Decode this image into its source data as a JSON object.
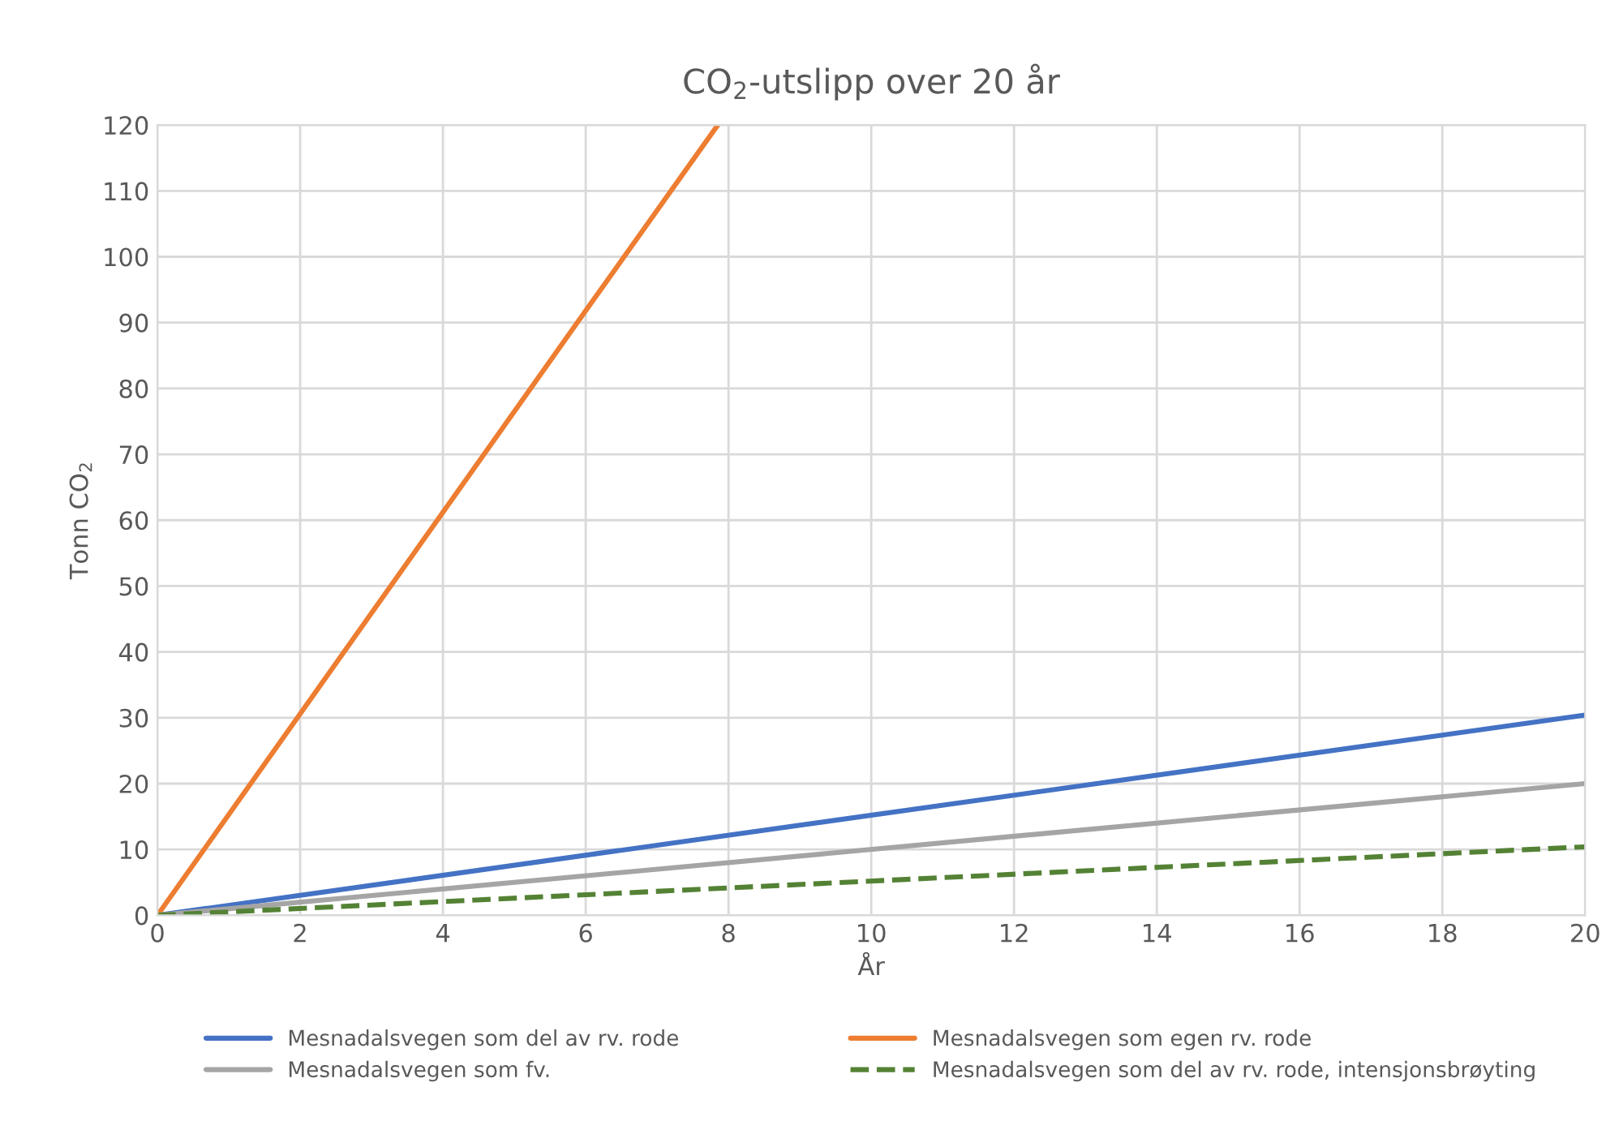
{
  "chart_data": {
    "type": "line",
    "title": "CO$_{2}$-utslipp over 20 år",
    "xlabel": "År",
    "ylabel": "Tonn CO$_{2}$",
    "xlim": [
      0,
      20
    ],
    "xticks": [
      0,
      2,
      4,
      6,
      8,
      10,
      12,
      14,
      16,
      18,
      20
    ],
    "ylim": [
      0,
      120
    ],
    "yticks": [
      0,
      10,
      20,
      30,
      40,
      50,
      60,
      70,
      80,
      90,
      100,
      110,
      120
    ],
    "grid": true,
    "legend": "bottom",
    "marker": "none",
    "series": [
      {
        "name": "Mesnadalsvegen som del av rv. rode",
        "color": "#4472c4",
        "x": [
          0,
          20
        ],
        "values": [
          0,
          30.4
        ],
        "line_style": "solid"
      },
      {
        "name": "Mesnadalsvegen som egen rv. rode",
        "color": "#ed7d31",
        "x": [
          0,
          2,
          4,
          6,
          7.85
        ],
        "values": [
          0,
          30.6,
          61.2,
          91.8,
          120
        ],
        "line_style": "solid"
      },
      {
        "name": "Mesnadalsvegen som fv.",
        "color": "#a5a5a5",
        "x": [
          0,
          20
        ],
        "values": [
          0,
          20
        ],
        "line_style": "solid"
      },
      {
        "name": "Mesnadalsvegen som del av rv. rode, intensjonsbrøyting",
        "color": "#548235",
        "x": [
          0,
          20
        ],
        "values": [
          0,
          10.4
        ],
        "line_style": "dashed"
      }
    ]
  }
}
